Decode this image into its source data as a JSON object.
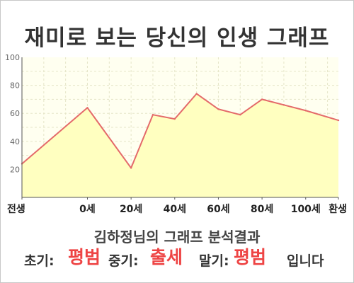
{
  "title": "재미로 보는 당신의 인생 그래프",
  "chart_data": {
    "type": "area",
    "categories": [
      "전생",
      "0세",
      "20세",
      "40세",
      "60세",
      "80세",
      "100세",
      "환생"
    ],
    "x": [
      -30,
      0,
      20,
      30,
      40,
      50,
      60,
      70,
      80,
      90,
      100,
      115
    ],
    "values": [
      24,
      64,
      21,
      59,
      56,
      74,
      63,
      59,
      70,
      66,
      62,
      55
    ],
    "x_ticks": [
      -30,
      0,
      20,
      40,
      60,
      80,
      100,
      115
    ],
    "ylim": [
      0,
      100
    ],
    "yticks": [
      20,
      40,
      60,
      80,
      100
    ],
    "grid": true,
    "line_color": "#e46a6a",
    "fill_color": "#ffffc0",
    "background_color": "#fffff0",
    "grid_color": "#e5e5c8"
  },
  "summary": "김하정님의 그래프 분석결과",
  "verdict": {
    "early_label": "초기:",
    "early_value": "평범",
    "middle_label": "중기:",
    "middle_value": "출세",
    "late_label": "말기:",
    "late_value": "평범",
    "tail": "입니다"
  }
}
